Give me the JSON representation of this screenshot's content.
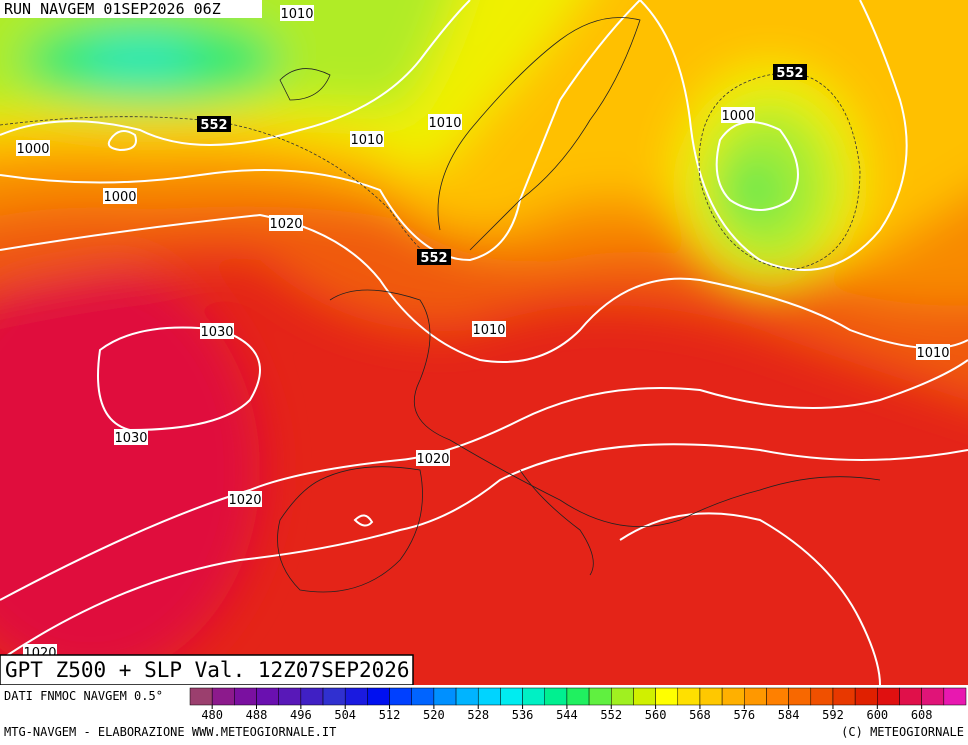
{
  "header": {
    "run": "RUN NAVGEM 01SEP2026 06Z"
  },
  "map": {
    "title": "GPT Z500 + SLP Val. 12Z07SEP2026",
    "contour_labels": [
      "1010",
      "552",
      "1000",
      "1010",
      "1010",
      "1000",
      "1020",
      "552",
      "552",
      "1000",
      "1030",
      "1010",
      "1010",
      "1030",
      "1020",
      "1020",
      "1020"
    ]
  },
  "footer": {
    "source": "DATI FNMOC NAVGEM 0.5°",
    "credit": "MTG-NAVGEM - ELABORAZIONE WWW.METEOGIORNALE.IT",
    "copyright": "(C) METEOGIORNALE"
  },
  "colorbar": {
    "colors": [
      "#9b3f6e",
      "#8c1a8c",
      "#7a10a0",
      "#6a10b0",
      "#5818b8",
      "#4020c4",
      "#3030d0",
      "#1a1ae0",
      "#0010f0",
      "#0040ff",
      "#0064ff",
      "#0090ff",
      "#00b4ff",
      "#00d4ff",
      "#00ecf0",
      "#00f0c4",
      "#00f090",
      "#20f060",
      "#60f040",
      "#a0f020",
      "#d0f000",
      "#ffff00",
      "#ffe000",
      "#ffc800",
      "#ffb000",
      "#ff9800",
      "#ff8000",
      "#f86800",
      "#f05000",
      "#e83800",
      "#e02000",
      "#e01010",
      "#e0104a",
      "#e01478",
      "#e818b0"
    ],
    "ticks": [
      480,
      488,
      496,
      504,
      512,
      520,
      528,
      536,
      544,
      552,
      560,
      568,
      576,
      584,
      592,
      600,
      608
    ]
  }
}
